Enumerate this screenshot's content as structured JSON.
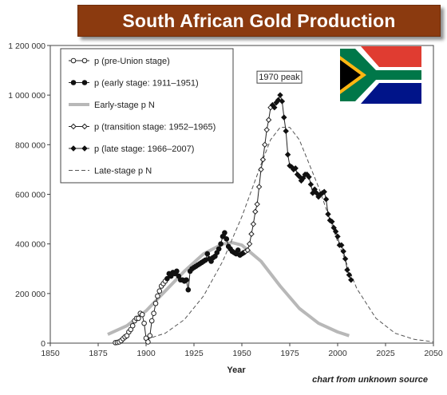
{
  "header": {
    "title": "South African Gold Production"
  },
  "footer": {
    "source_note": "chart from unknown source"
  },
  "colors": {
    "banner": "#8b3a0f",
    "flag_red": "#e03c31",
    "flag_blue": "#001489",
    "flag_green": "#007749",
    "flag_gold": "#ffb612",
    "flag_black": "#000000",
    "flag_white": "#ffffff"
  },
  "chart_data": {
    "type": "line",
    "xlabel": "Year",
    "ylabel": "",
    "xlim": [
      1850,
      2050
    ],
    "ylim": [
      0,
      1200000
    ],
    "xticks": [
      1850,
      1875,
      1900,
      1925,
      1950,
      1975,
      2000,
      2025,
      2050
    ],
    "yticks": [
      "0",
      "200 000",
      "400 000",
      "600 000",
      "800 000",
      "1 000 000",
      "1 200 000"
    ],
    "ytick_values": [
      0,
      200000,
      400000,
      600000,
      800000,
      1000000,
      1200000
    ],
    "grid": false,
    "legend_position": "top-left",
    "annotation": {
      "text": "1970 peak",
      "x": 1970,
      "y": 1000000
    },
    "series": [
      {
        "name": "p (pre-Union stage)",
        "style": "line-open-circle",
        "x": [
          1884,
          1885,
          1886,
          1887,
          1888,
          1889,
          1890,
          1891,
          1892,
          1893,
          1894,
          1895,
          1896,
          1897,
          1898,
          1899,
          1900,
          1901,
          1902,
          1903,
          1904,
          1905,
          1906,
          1907,
          1908,
          1909,
          1910
        ],
        "y": [
          2000,
          3000,
          5000,
          10000,
          18000,
          25000,
          30000,
          45000,
          55000,
          70000,
          90000,
          100000,
          100000,
          120000,
          115000,
          80000,
          20000,
          5000,
          30000,
          90000,
          120000,
          160000,
          190000,
          210000,
          230000,
          240000,
          250000
        ]
      },
      {
        "name": "p (early stage: 1911–1951)",
        "style": "line-filled-circle",
        "x": [
          1911,
          1912,
          1913,
          1914,
          1915,
          1916,
          1917,
          1918,
          1919,
          1920,
          1921,
          1922,
          1923,
          1924,
          1925,
          1926,
          1927,
          1928,
          1929,
          1930,
          1931,
          1932,
          1933,
          1934,
          1935,
          1936,
          1937,
          1938,
          1939,
          1940,
          1941,
          1942,
          1943,
          1944,
          1945,
          1946,
          1947,
          1948,
          1949,
          1950,
          1951
        ],
        "y": [
          260000,
          280000,
          270000,
          285000,
          280000,
          290000,
          270000,
          255000,
          255000,
          250000,
          255000,
          215000,
          290000,
          300000,
          305000,
          310000,
          315000,
          320000,
          325000,
          330000,
          335000,
          360000,
          340000,
          330000,
          345000,
          350000,
          365000,
          380000,
          400000,
          430000,
          445000,
          420000,
          390000,
          380000,
          370000,
          365000,
          360000,
          375000,
          355000,
          360000,
          365000
        ]
      },
      {
        "name": "Early-stage p N",
        "style": "thick-gray",
        "x": [
          1880,
          1890,
          1900,
          1910,
          1920,
          1930,
          1940,
          1945,
          1950,
          1960,
          1970,
          1980,
          1990,
          2000,
          2006
        ],
        "y": [
          35000,
          70000,
          130000,
          210000,
          290000,
          360000,
          400000,
          405000,
          395000,
          330000,
          230000,
          140000,
          80000,
          45000,
          30000
        ]
      },
      {
        "name": "p (transition stage: 1952–1965)",
        "style": "line-open-diamond",
        "x": [
          1952,
          1953,
          1954,
          1955,
          1956,
          1957,
          1958,
          1959,
          1960,
          1961,
          1962,
          1963,
          1964,
          1965
        ],
        "y": [
          370000,
          375000,
          400000,
          440000,
          480000,
          530000,
          560000,
          630000,
          700000,
          740000,
          800000,
          860000,
          900000,
          950000
        ]
      },
      {
        "name": "p (late stage: 1966–2007)",
        "style": "line-filled-diamond",
        "x": [
          1966,
          1967,
          1968,
          1969,
          1970,
          1971,
          1972,
          1973,
          1974,
          1975,
          1976,
          1977,
          1978,
          1979,
          1980,
          1981,
          1982,
          1983,
          1984,
          1985,
          1986,
          1987,
          1988,
          1989,
          1990,
          1991,
          1992,
          1993,
          1994,
          1995,
          1996,
          1997,
          1998,
          1999,
          2000,
          2001,
          2002,
          2003,
          2004,
          2005,
          2006,
          2007
        ],
        "y": [
          960000,
          950000,
          970000,
          980000,
          1000000,
          975000,
          910000,
          855000,
          760000,
          715000,
          710000,
          700000,
          705000,
          680000,
          672000,
          655000,
          665000,
          680000,
          680000,
          670000,
          640000,
          605000,
          620000,
          605000,
          590000,
          600000,
          605000,
          610000,
          580000,
          520000,
          495000,
          490000,
          465000,
          450000,
          430000,
          395000,
          395000,
          370000,
          340000,
          295000,
          275000,
          255000
        ]
      },
      {
        "name": "Late-stage p N",
        "style": "dashed",
        "x": [
          1900,
          1910,
          1920,
          1930,
          1940,
          1950,
          1960,
          1965,
          1970,
          1975,
          1980,
          1990,
          2000,
          2010,
          2020,
          2030,
          2040,
          2050
        ],
        "y": [
          15000,
          40000,
          95000,
          190000,
          330000,
          510000,
          720000,
          820000,
          870000,
          870000,
          820000,
          630000,
          410000,
          220000,
          100000,
          40000,
          15000,
          5000
        ]
      }
    ]
  }
}
